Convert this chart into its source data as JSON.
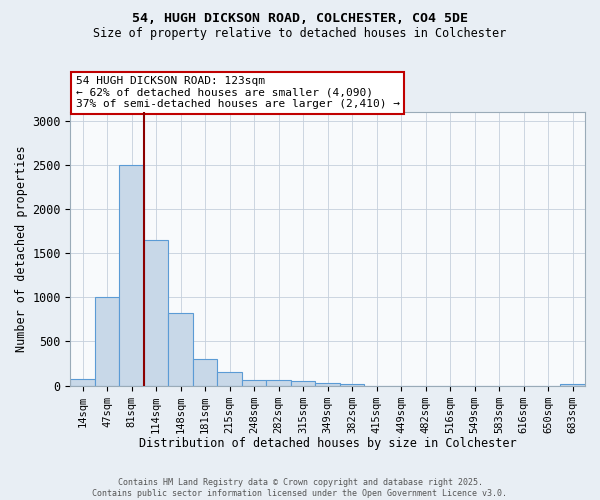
{
  "title_line1": "54, HUGH DICKSON ROAD, COLCHESTER, CO4 5DE",
  "title_line2": "Size of property relative to detached houses in Colchester",
  "xlabel": "Distribution of detached houses by size in Colchester",
  "ylabel": "Number of detached properties",
  "categories": [
    "14sqm",
    "47sqm",
    "81sqm",
    "114sqm",
    "148sqm",
    "181sqm",
    "215sqm",
    "248sqm",
    "282sqm",
    "315sqm",
    "349sqm",
    "382sqm",
    "415sqm",
    "449sqm",
    "482sqm",
    "516sqm",
    "549sqm",
    "583sqm",
    "616sqm",
    "650sqm",
    "683sqm"
  ],
  "values": [
    75,
    1005,
    2500,
    1650,
    820,
    300,
    150,
    65,
    65,
    50,
    30,
    15,
    0,
    0,
    0,
    0,
    0,
    0,
    0,
    0,
    20
  ],
  "bar_color": "#c8d8e8",
  "bar_edge_color": "#5b9bd5",
  "vline_index": 2.5,
  "vline_color": "#8b0000",
  "annotation_text": "54 HUGH DICKSON ROAD: 123sqm\n← 62% of detached houses are smaller (4,090)\n37% of semi-detached houses are larger (2,410) →",
  "annotation_box_color": "white",
  "annotation_box_edge_color": "#c00000",
  "ylim": [
    0,
    3100
  ],
  "yticks": [
    0,
    500,
    1000,
    1500,
    2000,
    2500,
    3000
  ],
  "background_color": "#e8eef4",
  "plot_background": "#f8fafc",
  "grid_color": "#c5d0dc",
  "footnote": "Contains HM Land Registry data © Crown copyright and database right 2025.\nContains public sector information licensed under the Open Government Licence v3.0."
}
